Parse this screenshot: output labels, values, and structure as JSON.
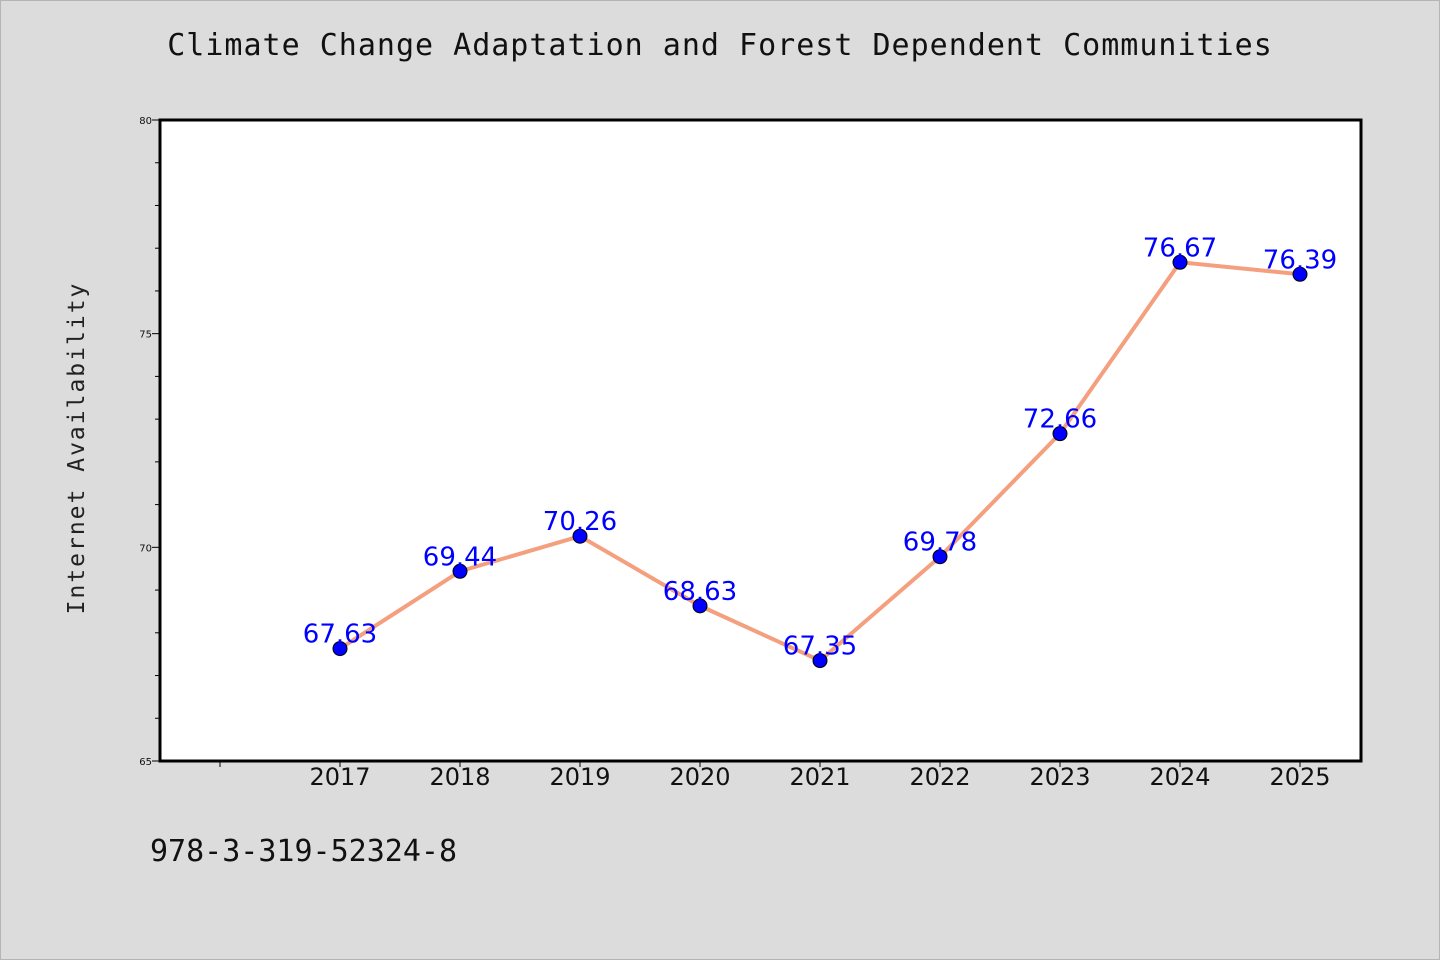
{
  "chart_data": {
    "type": "line",
    "title": "Climate Change Adaptation and Forest Dependent Communities",
    "xlabel": "",
    "ylabel": "Internet Availability",
    "x": [
      "2017",
      "2018",
      "2019",
      "2020",
      "2021",
      "2022",
      "2023",
      "2024",
      "2025"
    ],
    "series": [
      {
        "values": [
          67.63,
          69.44,
          70.26,
          68.63,
          67.35,
          69.78,
          72.66,
          76.67,
          76.39
        ],
        "data_labels": [
          "67.63",
          "69.44",
          "70.26",
          "68.63",
          "67.35",
          "69.78",
          "72.66",
          "76.67",
          "76.39"
        ],
        "line_color": "#f4a07f",
        "marker_color": "#0000ff"
      }
    ],
    "ylim": [
      65,
      80
    ],
    "y_ticks": [
      "65",
      "70",
      "75",
      "80"
    ],
    "grid": false,
    "legend": "none"
  },
  "footer": {
    "isbn": "978-3-319-52324-8"
  },
  "colors": {
    "background": "#dcdcdc",
    "plot_background": "#ffffff",
    "label_color": "#0000ff"
  }
}
